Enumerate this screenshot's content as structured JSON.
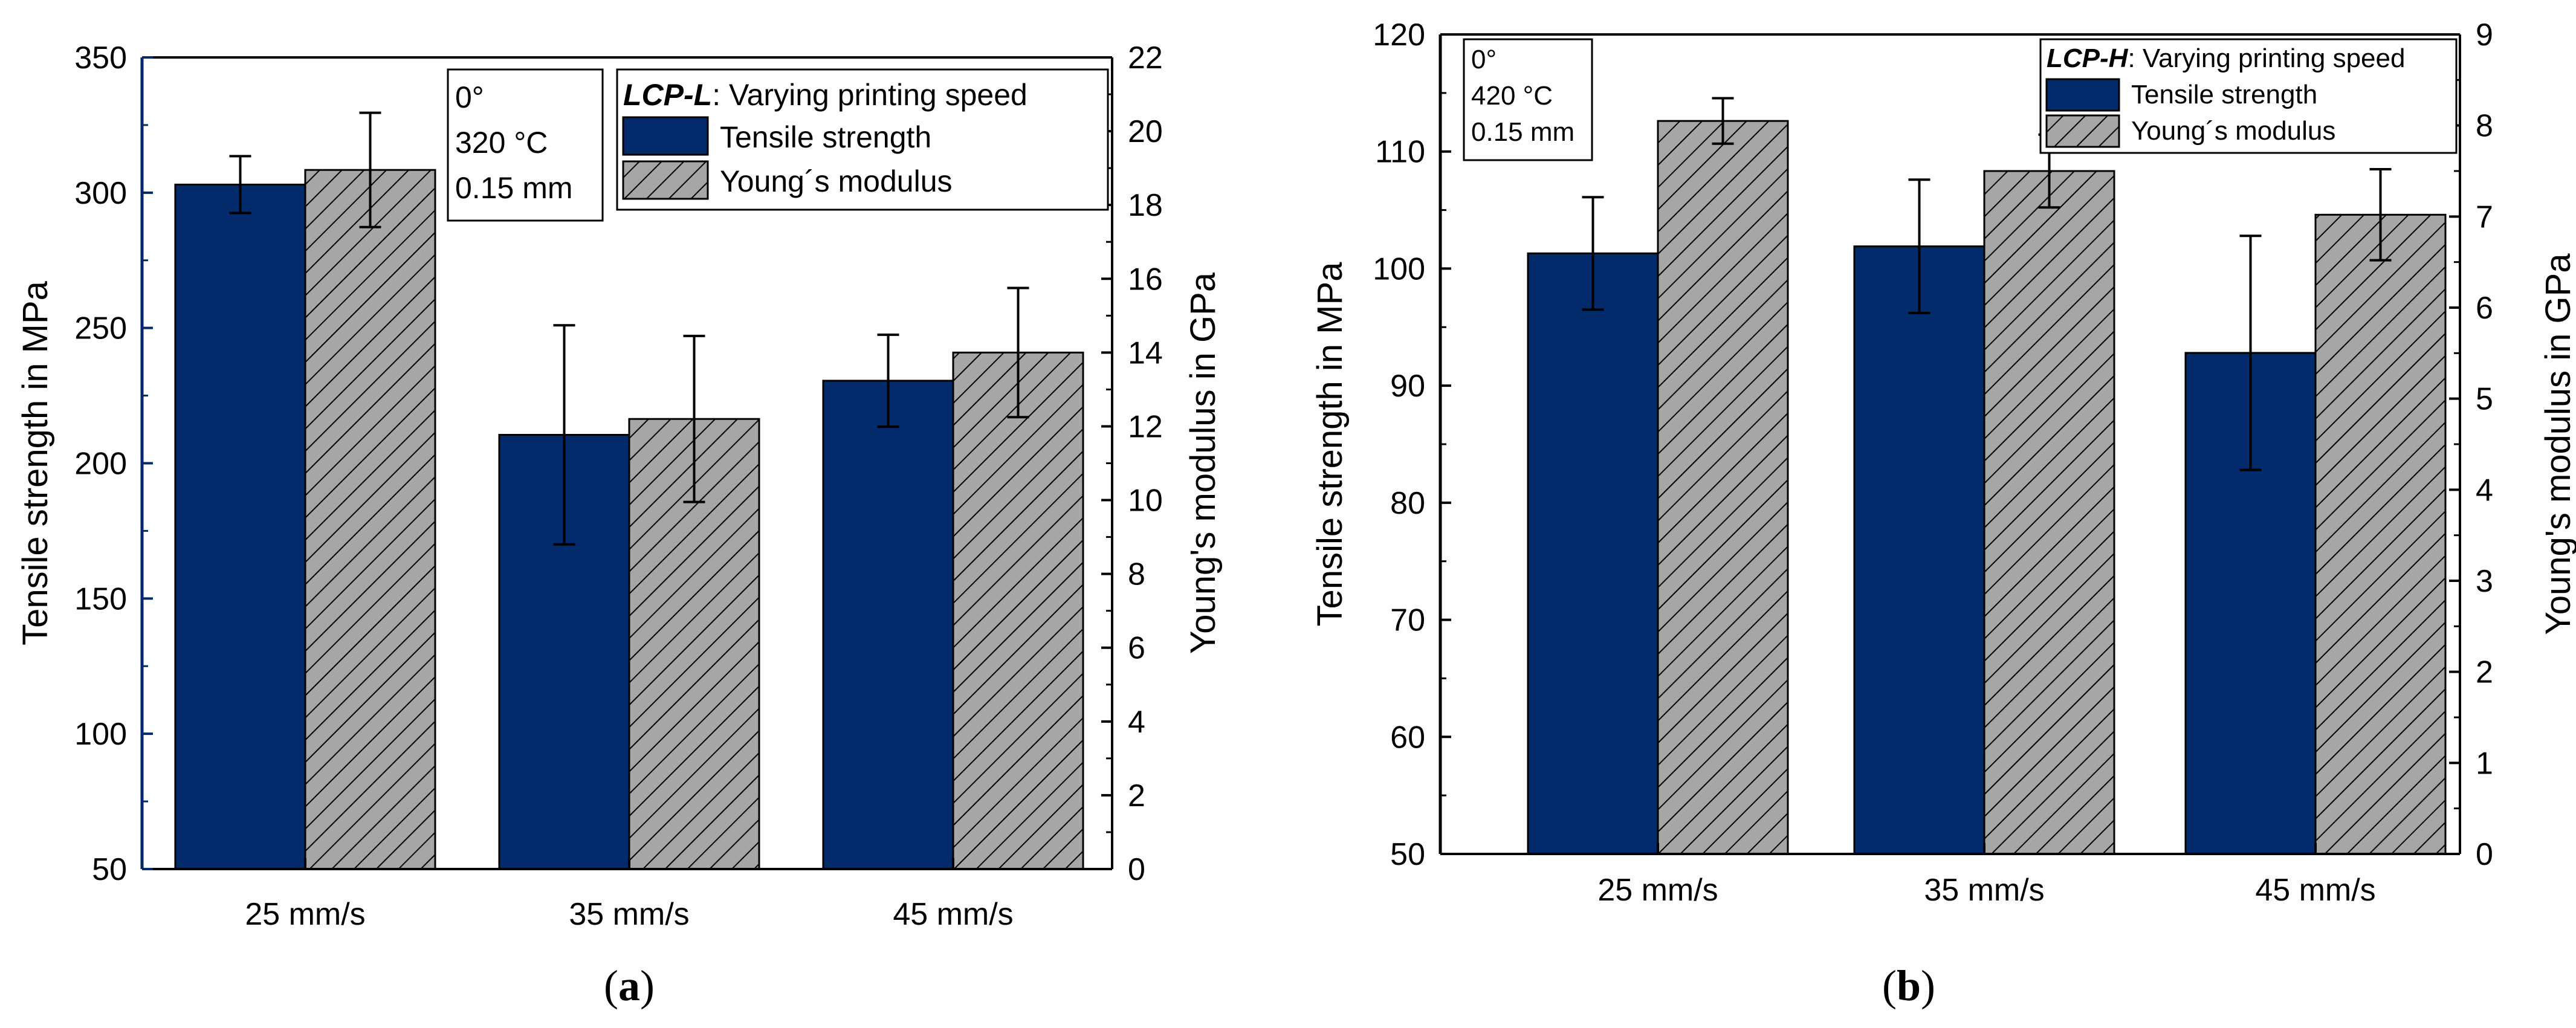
{
  "colors": {
    "tensile": "#032a6b",
    "modulus": "#a6a6a6",
    "axis": "#000000",
    "panel_a_left_axis": "#032a6b"
  },
  "chart_data": [
    {
      "type": "bar",
      "panel_label": "a",
      "categories": [
        "25 mm/s",
        "35 mm/s",
        "45 mm/s"
      ],
      "left_axis": {
        "label": "Tensile strength in MPa",
        "range": [
          50,
          350
        ],
        "ticks": [
          50,
          100,
          150,
          200,
          250,
          300,
          350
        ]
      },
      "right_axis": {
        "label": "Young's modulus in GPa",
        "range": [
          0,
          22
        ],
        "ticks": [
          0,
          2,
          4,
          6,
          8,
          10,
          12,
          14,
          16,
          18,
          20,
          22
        ]
      },
      "series": [
        {
          "name": "Tensile strength",
          "axis": "left",
          "values": [
            303,
            210.5,
            230.5
          ],
          "errors": [
            10.5,
            40.5,
            17
          ]
        },
        {
          "name": "Young´s modulus",
          "axis": "right",
          "values": [
            18.95,
            12.2,
            14.0
          ],
          "errors": [
            1.55,
            2.25,
            1.75
          ]
        }
      ],
      "legend": {
        "title_bold": "LCP-L",
        "title_rest": ": Varying printing speed",
        "placement": "top-right"
      },
      "info_box": [
        "0°",
        "320 °C",
        "0.15 mm"
      ]
    },
    {
      "type": "bar",
      "panel_label": "b",
      "categories": [
        "25 mm/s",
        "35 mm/s",
        "45 mm/s"
      ],
      "left_axis": {
        "label": "Tensile strength in MPa",
        "range": [
          50,
          120
        ],
        "ticks": [
          50,
          60,
          70,
          80,
          90,
          100,
          110,
          120
        ]
      },
      "right_axis": {
        "label": "Young's modulus in GPa",
        "range": [
          0,
          9
        ],
        "ticks": [
          0,
          1,
          2,
          3,
          4,
          5,
          6,
          7,
          8,
          9
        ]
      },
      "series": [
        {
          "name": "Tensile strength",
          "axis": "left",
          "values": [
            101.3,
            101.9,
            92.8
          ],
          "errors": [
            4.8,
            5.7,
            10
          ]
        },
        {
          "name": "Young´s modulus",
          "axis": "right",
          "values": [
            8.05,
            7.5,
            7.02
          ],
          "errors": [
            0.25,
            0.4,
            0.5
          ]
        }
      ],
      "legend": {
        "title_bold": "LCP-H",
        "title_rest": ": Varying printing speed",
        "placement": "top-right"
      },
      "info_box": [
        "0°",
        "420 °C",
        "0.15 mm"
      ]
    }
  ]
}
